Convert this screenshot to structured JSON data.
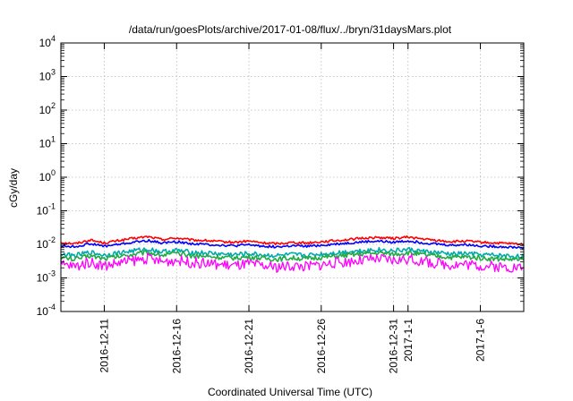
{
  "chart_data": {
    "type": "line",
    "title": "/data/run/goesPlots/archive/2017-01-08/flux/../bryn/31daysMars.plot",
    "xlabel": "Coordinated Universal Time (UTC)",
    "ylabel": "cGy/day",
    "yscale": "log",
    "ylim": [
      0.0001,
      10000
    ],
    "xlim": [
      "2016-12-08",
      "2017-01-09"
    ],
    "grid": true,
    "legend": "none",
    "x_ticks": [
      {
        "date": "2016-12-11",
        "label": "2016-12-11"
      },
      {
        "date": "2016-12-16",
        "label": "2016-12-16"
      },
      {
        "date": "2016-12-21",
        "label": "2016-12-21"
      },
      {
        "date": "2016-12-26",
        "label": "2016-12-26"
      },
      {
        "date": "2016-12-31",
        "label": "2016-12-31"
      },
      {
        "date": "2017-01-01",
        "label": "2017-1-1"
      },
      {
        "date": "2017-01-06",
        "label": "2017-1-6"
      }
    ],
    "y_ticks": [
      {
        "value": 0.0001,
        "base": "10",
        "exp": "-4"
      },
      {
        "value": 0.001,
        "base": "10",
        "exp": "-3"
      },
      {
        "value": 0.01,
        "base": "10",
        "exp": "-2"
      },
      {
        "value": 0.1,
        "base": "10",
        "exp": "-1"
      },
      {
        "value": 1,
        "base": "10",
        "exp": "0"
      },
      {
        "value": 10,
        "base": "10",
        "exp": "1"
      },
      {
        "value": 100,
        "base": "10",
        "exp": "2"
      },
      {
        "value": 1000,
        "base": "10",
        "exp": "3"
      },
      {
        "value": 10000,
        "base": "10",
        "exp": "4"
      }
    ],
    "series": [
      {
        "color": "#ff0000",
        "x": [
          "2016-12-08",
          "2016-12-09",
          "2016-12-10",
          "2016-12-11",
          "2016-12-12",
          "2016-12-13",
          "2016-12-14",
          "2016-12-15",
          "2016-12-16",
          "2016-12-17",
          "2016-12-18",
          "2016-12-19",
          "2016-12-20",
          "2016-12-21",
          "2016-12-22",
          "2016-12-23",
          "2016-12-24",
          "2016-12-25",
          "2016-12-26",
          "2016-12-27",
          "2016-12-28",
          "2016-12-29",
          "2016-12-30",
          "2016-12-31",
          "2017-01-01",
          "2017-01-02",
          "2017-01-03",
          "2017-01-04",
          "2017-01-05",
          "2017-01-06",
          "2017-01-07",
          "2017-01-08",
          "2017-01-09"
        ],
        "y": [
          0.0115,
          0.0105,
          0.0135,
          0.011,
          0.013,
          0.015,
          0.017,
          0.014,
          0.0155,
          0.0135,
          0.013,
          0.012,
          0.0115,
          0.0125,
          0.011,
          0.0105,
          0.0115,
          0.011,
          0.012,
          0.013,
          0.014,
          0.0155,
          0.016,
          0.015,
          0.0165,
          0.0145,
          0.013,
          0.012,
          0.0125,
          0.0115,
          0.011,
          0.0105,
          0.01
        ]
      },
      {
        "color": "#0000ff",
        "x": [
          "2016-12-08",
          "2016-12-09",
          "2016-12-10",
          "2016-12-11",
          "2016-12-12",
          "2016-12-13",
          "2016-12-14",
          "2016-12-15",
          "2016-12-16",
          "2016-12-17",
          "2016-12-18",
          "2016-12-19",
          "2016-12-20",
          "2016-12-21",
          "2016-12-22",
          "2016-12-23",
          "2016-12-24",
          "2016-12-25",
          "2016-12-26",
          "2016-12-27",
          "2016-12-28",
          "2016-12-29",
          "2016-12-30",
          "2016-12-31",
          "2017-01-01",
          "2017-01-02",
          "2017-01-03",
          "2017-01-04",
          "2017-01-05",
          "2017-01-06",
          "2017-01-07",
          "2017-01-08",
          "2017-01-09"
        ],
        "y": [
          0.009,
          0.0085,
          0.0105,
          0.0088,
          0.01,
          0.0115,
          0.013,
          0.011,
          0.012,
          0.0105,
          0.01,
          0.0095,
          0.009,
          0.0097,
          0.0088,
          0.0084,
          0.009,
          0.0087,
          0.0094,
          0.0102,
          0.011,
          0.012,
          0.0124,
          0.0116,
          0.0127,
          0.0112,
          0.0102,
          0.0094,
          0.0098,
          0.009,
          0.0087,
          0.0083,
          0.008
        ]
      },
      {
        "color": "#00aaaa",
        "x": [
          "2016-12-08",
          "2016-12-09",
          "2016-12-10",
          "2016-12-11",
          "2016-12-12",
          "2016-12-13",
          "2016-12-14",
          "2016-12-15",
          "2016-12-16",
          "2016-12-17",
          "2016-12-18",
          "2016-12-19",
          "2016-12-20",
          "2016-12-21",
          "2016-12-22",
          "2016-12-23",
          "2016-12-24",
          "2016-12-25",
          "2016-12-26",
          "2016-12-27",
          "2016-12-28",
          "2016-12-29",
          "2016-12-30",
          "2016-12-31",
          "2017-01-01",
          "2017-01-02",
          "2017-01-03",
          "2017-01-04",
          "2017-01-05",
          "2017-01-06",
          "2017-01-07",
          "2017-01-08",
          "2017-01-09"
        ],
        "y": [
          0.005,
          0.0046,
          0.0058,
          0.0048,
          0.0056,
          0.0064,
          0.0072,
          0.006,
          0.0066,
          0.0058,
          0.0055,
          0.0052,
          0.0049,
          0.0053,
          0.0048,
          0.0046,
          0.0049,
          0.0047,
          0.0051,
          0.0056,
          0.0061,
          0.0066,
          0.0069,
          0.0064,
          0.007,
          0.0062,
          0.0056,
          0.0051,
          0.0053,
          0.0049,
          0.0047,
          0.0045,
          0.0043
        ]
      },
      {
        "color": "#22aa44",
        "x": [
          "2016-12-08",
          "2016-12-09",
          "2016-12-10",
          "2016-12-11",
          "2016-12-12",
          "2016-12-13",
          "2016-12-14",
          "2016-12-15",
          "2016-12-16",
          "2016-12-17",
          "2016-12-18",
          "2016-12-19",
          "2016-12-20",
          "2016-12-21",
          "2016-12-22",
          "2016-12-23",
          "2016-12-24",
          "2016-12-25",
          "2016-12-26",
          "2016-12-27",
          "2016-12-28",
          "2016-12-29",
          "2016-12-30",
          "2016-12-31",
          "2017-01-01",
          "2017-01-02",
          "2017-01-03",
          "2017-01-04",
          "2017-01-05",
          "2017-01-06",
          "2017-01-07",
          "2017-01-08",
          "2017-01-09"
        ],
        "y": [
          0.004,
          0.0036,
          0.0046,
          0.0038,
          0.0044,
          0.0051,
          0.0058,
          0.0048,
          0.0053,
          0.0046,
          0.0044,
          0.0041,
          0.0039,
          0.0042,
          0.0038,
          0.0036,
          0.0039,
          0.0037,
          0.0041,
          0.0044,
          0.0048,
          0.0053,
          0.0055,
          0.0051,
          0.0056,
          0.0049,
          0.0044,
          0.0041,
          0.0042,
          0.0039,
          0.0037,
          0.0036,
          0.0034
        ]
      },
      {
        "color": "#ff00ff",
        "x": [
          "2016-12-08",
          "2016-12-09",
          "2016-12-10",
          "2016-12-11",
          "2016-12-12",
          "2016-12-13",
          "2016-12-14",
          "2016-12-15",
          "2016-12-16",
          "2016-12-17",
          "2016-12-18",
          "2016-12-19",
          "2016-12-20",
          "2016-12-21",
          "2016-12-22",
          "2016-12-23",
          "2016-12-24",
          "2016-12-25",
          "2016-12-26",
          "2016-12-27",
          "2016-12-28",
          "2016-12-29",
          "2016-12-30",
          "2016-12-31",
          "2017-01-01",
          "2017-01-02",
          "2017-01-03",
          "2017-01-04",
          "2017-01-05",
          "2017-01-06",
          "2017-01-07",
          "2017-01-08",
          "2017-01-09"
        ],
        "y": [
          0.0025,
          0.0022,
          0.003,
          0.0023,
          0.0028,
          0.0033,
          0.0038,
          0.003,
          0.0034,
          0.0029,
          0.0027,
          0.0025,
          0.0023,
          0.0026,
          0.0022,
          0.0021,
          0.0023,
          0.0022,
          0.0025,
          0.0028,
          0.0031,
          0.0034,
          0.0036,
          0.0033,
          0.0037,
          0.0031,
          0.0027,
          0.0025,
          0.0026,
          0.0023,
          0.0022,
          0.0021,
          0.002
        ]
      }
    ]
  }
}
